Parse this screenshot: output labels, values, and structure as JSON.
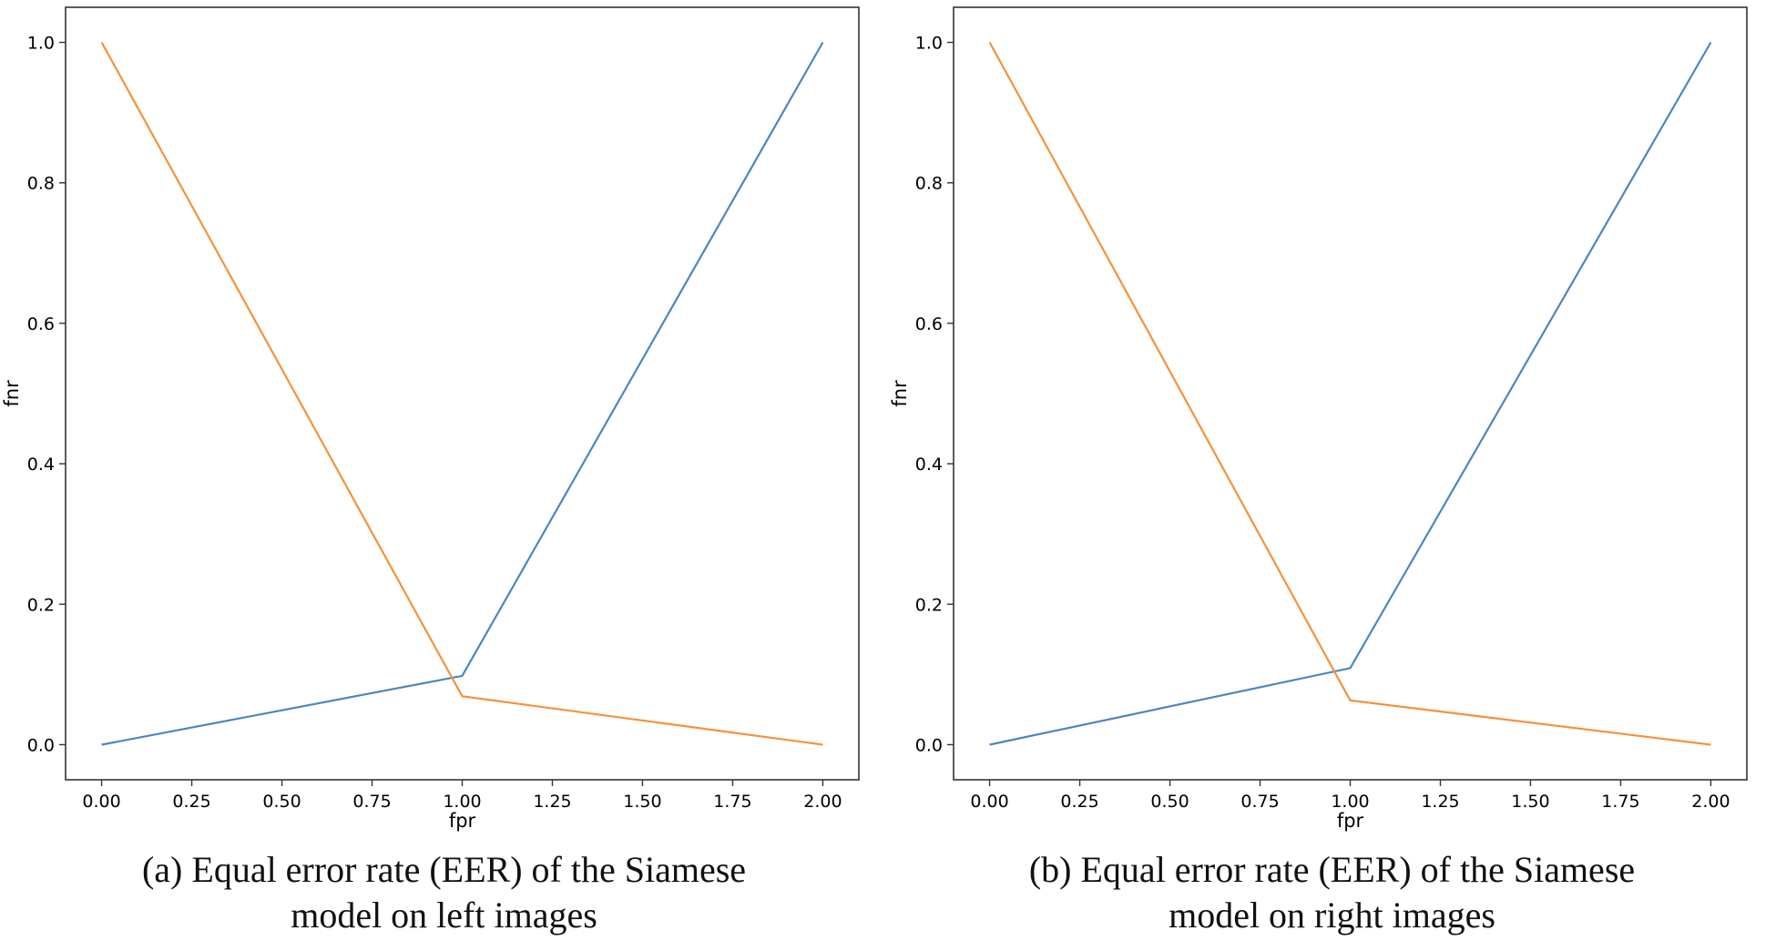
{
  "chart_data": [
    {
      "type": "line",
      "xlabel": "fpr",
      "ylabel": "fnr",
      "xlim": [
        -0.1,
        2.1
      ],
      "ylim": [
        -0.05,
        1.05
      ],
      "xticks": [
        "0.00",
        "0.25",
        "0.50",
        "0.75",
        "1.00",
        "1.25",
        "1.50",
        "1.75",
        "2.00"
      ],
      "yticks": [
        "0.0",
        "0.2",
        "0.4",
        "0.6",
        "0.8",
        "1.0"
      ],
      "grid": false,
      "series": [
        {
          "color": "#4c86be",
          "x": [
            0,
            1,
            2
          ],
          "y": [
            0.0,
            0.098,
            1.0
          ]
        },
        {
          "color": "#f5923a",
          "x": [
            0,
            1,
            2
          ],
          "y": [
            1.0,
            0.069,
            0.0
          ]
        }
      ],
      "caption_line1": "(a) Equal error rate (EER) of the Siamese",
      "caption_line2": "model on left images"
    },
    {
      "type": "line",
      "xlabel": "fpr",
      "ylabel": "fnr",
      "xlim": [
        -0.1,
        2.1
      ],
      "ylim": [
        -0.05,
        1.05
      ],
      "xticks": [
        "0.00",
        "0.25",
        "0.50",
        "0.75",
        "1.00",
        "1.25",
        "1.50",
        "1.75",
        "2.00"
      ],
      "yticks": [
        "0.0",
        "0.2",
        "0.4",
        "0.6",
        "0.8",
        "1.0"
      ],
      "grid": false,
      "series": [
        {
          "color": "#4c86be",
          "x": [
            0,
            1,
            2
          ],
          "y": [
            0.0,
            0.109,
            1.0
          ]
        },
        {
          "color": "#f5923a",
          "x": [
            0,
            1,
            2
          ],
          "y": [
            1.0,
            0.063,
            0.0
          ]
        }
      ],
      "caption_line1": "(b) Equal error rate (EER) of the Siamese",
      "caption_line2": "model on right images"
    }
  ]
}
